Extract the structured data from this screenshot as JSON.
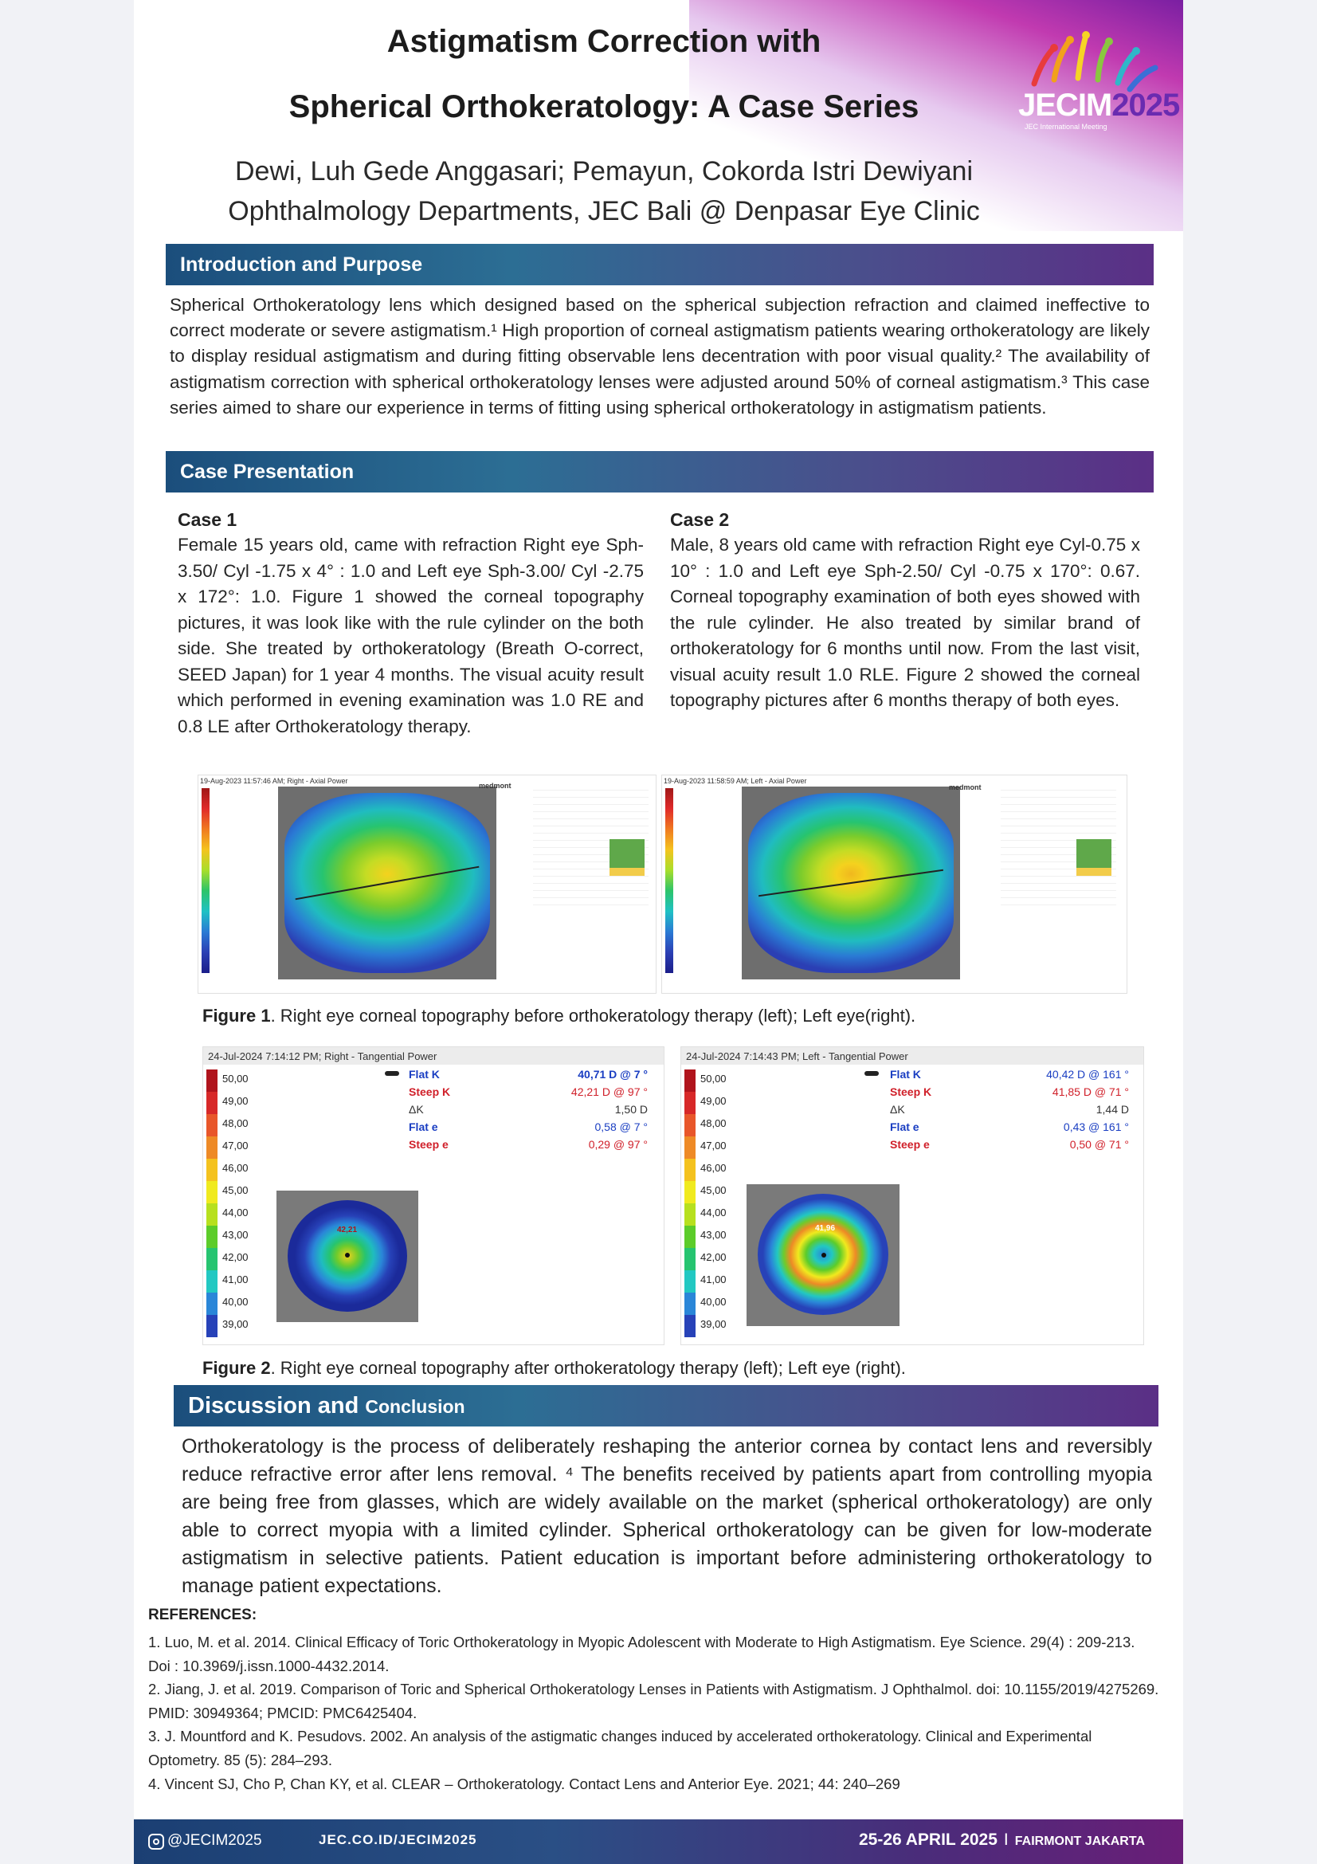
{
  "title": {
    "line1": "Astigmatism Correction with",
    "line2": "Spherical Orthokeratology: A Case Series"
  },
  "authors": {
    "names": "Dewi, Luh Gede Anggasari; Pemayun, Cokorda Istri Dewiyani",
    "affiliation": "Ophthalmology Departments, JEC Bali @ Denpasar Eye Clinic"
  },
  "logo": {
    "text": "JECIM",
    "year": "2025",
    "subtitle": "JEC International Meeting"
  },
  "sections": {
    "intro_title": "Introduction and Purpose",
    "intro_text": "Spherical Orthokeratology lens which designed based on the spherical subjection refraction and claimed ineffective to correct moderate or severe astigmatism.¹ High proportion of corneal astigmatism patients wearing orthokeratology are likely to display residual astigmatism and during fitting observable lens decentration with poor visual quality.² The availability of astigmatism correction with spherical orthokeratology lenses were adjusted around 50% of corneal astigmatism.³ This case series aimed to share our experience in terms of fitting using spherical orthokeratology in astigmatism patients.",
    "case_title": "Case Presentation",
    "discussion_title_a": "Discussion and",
    "discussion_title_b": "Conclusion",
    "discussion_text": "Orthokeratology is the process of deliberately reshaping the anterior cornea by contact lens and reversibly reduce refractive error after lens removal. ⁴ The benefits received by patients apart from controlling myopia are being free from glasses, which are widely available on the market (spherical orthokeratology) are only able to correct myopia with a limited cylinder. Spherical orthokeratology can be given for low-moderate astigmatism in selective patients. Patient education is important before administering orthokeratology to manage patient expectations."
  },
  "cases": [
    {
      "title": "Case 1",
      "text": "Female 15 years old, came with refraction Right eye Sph-3.50/ Cyl -1.75 x 4° : 1.0 and Left eye  Sph-3.00/ Cyl -2.75 x 172°: 1.0. Figure 1 showed the corneal topography pictures, it was look like with the rule cylinder on the both side. She treated by orthokeratology (Breath O-correct, SEED Japan) for 1 year 4 months. The visual acuity result which performed in evening examination was 1.0 RE and 0.8 LE after Orthokeratology therapy."
    },
    {
      "title": "Case 2",
      "text": "Male, 8 years old came with refraction Right eye Cyl-0.75 x 10° : 1.0 and Left eye  Sph-2.50/ Cyl -0.75 x 170°: 0.67. Corneal topography examination of both eyes showed with the rule cylinder. He also treated by similar brand of orthokeratology for 6 months until now. From the last visit, visual acuity result 1.0 RLE.  Figure 2 showed the corneal topography pictures after 6 months therapy of both eyes."
    }
  ],
  "figure1": {
    "caption_label": "Figure 1",
    "caption_text": ". Right eye corneal topography before orthokeratology therapy (left); Left eye(right).",
    "panels": [
      {
        "header": "19-Aug-2023 11:57:46 AM; Right - Axial Power",
        "brand": "medmont"
      },
      {
        "header": "19-Aug-2023 11:58:59 AM; Left - Axial Power",
        "brand": "medmont"
      }
    ]
  },
  "figure2": {
    "caption_label": "Figure 2",
    "caption_text": ". Right eye corneal topography after orthokeratology therapy (left); Left eye (right).",
    "scale_labels": [
      "50,00",
      "49,00",
      "48,00",
      "47,00",
      "46,00",
      "45,00",
      "44,00",
      "43,00",
      "42,00",
      "41,00",
      "40,00",
      "39,00"
    ],
    "scale_colors": [
      "#b0141c",
      "#d72828",
      "#e8562a",
      "#ee8a26",
      "#f4c21e",
      "#f0ea1e",
      "#b7e01e",
      "#5ccc2a",
      "#26c470",
      "#22c8c2",
      "#2a86d8",
      "#2742b8"
    ],
    "panels": [
      {
        "header": "24-Jul-2024 7:14:12 PM; Right - Tangential Power",
        "center_label": "42,21",
        "rows": [
          {
            "label": "Flat K",
            "value": "40,71 D @  7 °",
            "style": "blue"
          },
          {
            "label": "Steep K",
            "value": "42,21 D @  97 °",
            "style": "red"
          },
          {
            "label": "ΔK",
            "value": "1,50 D",
            "style": "plain"
          },
          {
            "label": "Flat e",
            "value": "0,58 @  7 °",
            "style": "blue"
          },
          {
            "label": "Steep e",
            "value": "0,29 @  97 °",
            "style": "red"
          }
        ]
      },
      {
        "header": "24-Jul-2024 7:14:43 PM; Left - Tangential Power",
        "center_label": "41,96",
        "rows": [
          {
            "label": "Flat K",
            "value": "40,42 D @  161 °",
            "style": "blue"
          },
          {
            "label": "Steep K",
            "value": "41,85 D @  71 °",
            "style": "red"
          },
          {
            "label": "ΔK",
            "value": "1,44 D",
            "style": "plain"
          },
          {
            "label": "Flat e",
            "value": "0,43 @  161 °",
            "style": "blue"
          },
          {
            "label": "Steep e",
            "value": "0,50 @  71 °",
            "style": "red"
          }
        ]
      }
    ]
  },
  "references": {
    "title": "REFERENCES:",
    "items": [
      "1. Luo, M. et al. 2014. Clinical Efficacy of Toric Orthokeratology in Myopic Adolescent with Moderate to High Astigmatism. Eye Science. 29(4) : 209-213. Doi : 10.3969/j.issn.1000-4432.2014.",
      "2. Jiang, J. et al. 2019. Comparison of Toric and Spherical Orthokeratology Lenses in Patients with Astigmatism. J Ophthalmol. doi: 10.1155/2019/4275269. PMID: 30949364; PMCID: PMC6425404.",
      "3. J. Mountford and K. Pesudovs. 2002. An analysis of the astigmatic changes induced by accelerated orthokeratology. Clinical and Experimental Optometry. 85 (5): 284–293.",
      "4. Vincent SJ, Cho P, Chan KY, et al. CLEAR – Orthokeratology. Contact Lens and Anterior Eye. 2021; 44: 240–269"
    ]
  },
  "footer": {
    "handle": "@JECIM2025",
    "url": "JEC.CO.ID/JECIM2025",
    "date": "25-26 APRIL 2025",
    "separator": "I",
    "venue": "FAIRMONT JAKARTA"
  }
}
